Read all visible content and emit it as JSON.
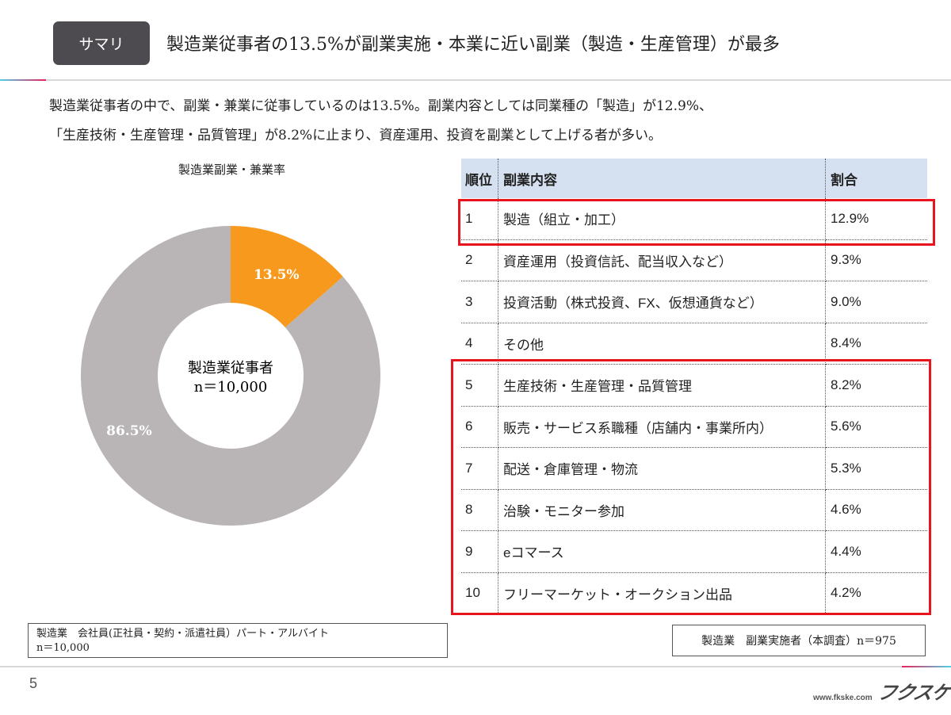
{
  "header": {
    "badge": "サマリ",
    "title": "製造業従事者の13.5%が副業実施・本業に近い副業（製造・生産管理）が最多"
  },
  "lead": [
    "製造業従事者の中で、副業・兼業に従事しているのは13.5%。副業内容としては同業種の「製造」が12.9%、",
    "「生産技術・生産管理・品質管理」が8.2%に止まり、資産運用、投資を副業として上げる者が多い。"
  ],
  "chart_data": {
    "type": "pie",
    "title": "製造業副業・兼業率",
    "center_label": [
      "製造業従事者",
      "n＝10,000"
    ],
    "slices": [
      {
        "label": "13.5%",
        "value": 13.5,
        "color": "#f7991c"
      },
      {
        "label": "86.5%",
        "value": 86.5,
        "color": "#b9b4b6"
      }
    ]
  },
  "table": {
    "headers": [
      "順位",
      "副業内容",
      "割合"
    ],
    "rows": [
      [
        "1",
        "製造（組立・加工）",
        "12.9%"
      ],
      [
        "2",
        "資産運用（投資信託、配当収入など）",
        "9.3%"
      ],
      [
        "3",
        "投資活動（株式投資、FX、仮想通貨など）",
        "9.0%"
      ],
      [
        "4",
        "その他",
        "8.4%"
      ],
      [
        "5",
        "生産技術・生産管理・品質管理",
        "8.2%"
      ],
      [
        "6",
        "販売・サービス系職種（店舗内・事業所内）",
        "5.6%"
      ],
      [
        "7",
        "配送・倉庫管理・物流",
        "5.3%"
      ],
      [
        "8",
        "治験・モニター参加",
        "4.6%"
      ],
      [
        "9",
        "eコマース",
        "4.4%"
      ],
      [
        "10",
        "フリーマーケット・オークション出品",
        "4.2%"
      ]
    ],
    "highlight_color": "#e8141e"
  },
  "notes": {
    "left": [
      "製造業　会社員(正社員・契約・派遣社員）パート・アルバイト",
      "n＝10,000"
    ],
    "right": "製造業　副業実施者（本調査）n＝975"
  },
  "footer": {
    "page": "5",
    "logo": "フクスケ",
    "url": "www.fkske.com"
  }
}
